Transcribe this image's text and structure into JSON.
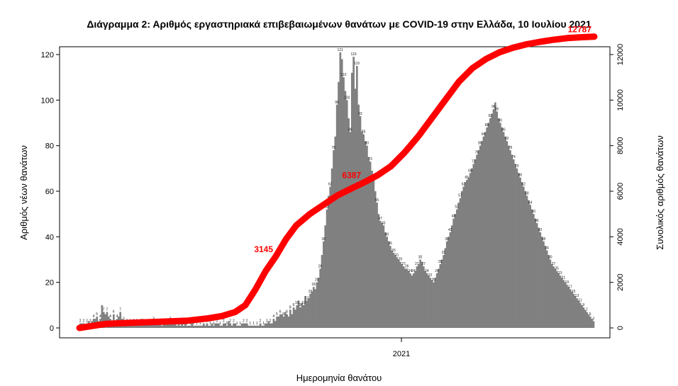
{
  "chart_data": {
    "type": "bar",
    "title": "Διάγραμμα 2: Αριθμός εργαστηριακά επιβεβαιωμένων θανάτων με COVID-19 στην Ελλάδα, 10 Ιουλίου 2021",
    "xlabel": "Ημερομηνία θανάτου",
    "ylabel_left": "Αριθμός νέων θανάτων",
    "ylabel_right": "Συνολικός αριθμός θανάτων",
    "x_ticks": [
      "2021"
    ],
    "y_left_ticks": [
      "0",
      "20",
      "40",
      "60",
      "80",
      "100",
      "120"
    ],
    "y_right_ticks": [
      "0",
      "2000",
      "4000",
      "6000",
      "8000",
      "10000",
      "12000"
    ],
    "ylim_left": [
      0,
      120
    ],
    "ylim_right": [
      0,
      12000
    ],
    "bar_color": "#808080",
    "line_color": "#ff0000",
    "series": [
      {
        "name": "daily",
        "type": "bar",
        "values": [
          2,
          2,
          2,
          1,
          2,
          3,
          2,
          3,
          4,
          4,
          5,
          3,
          4,
          10,
          7,
          6,
          7,
          5,
          4,
          3,
          6,
          3,
          4,
          5,
          7,
          4,
          3,
          3,
          2,
          3,
          2,
          2,
          2,
          3,
          2,
          3,
          2,
          4,
          2,
          3,
          2,
          2,
          2,
          3,
          3,
          2,
          2,
          2,
          2,
          1,
          2,
          2,
          2,
          2,
          3,
          2,
          2,
          2,
          1,
          2,
          1,
          2,
          1,
          2,
          1,
          1,
          1,
          2,
          1,
          1,
          1,
          1,
          1,
          1,
          2,
          1,
          2,
          1,
          1,
          2,
          1,
          2,
          2,
          2,
          1,
          1,
          2,
          2,
          1,
          3,
          2,
          1,
          2,
          2,
          1,
          1,
          1,
          2,
          2,
          2,
          2,
          1,
          1,
          1,
          1,
          1,
          1,
          1,
          2,
          1,
          1,
          2,
          2,
          3,
          2,
          2,
          4,
          3,
          5,
          5,
          6,
          6,
          5,
          7,
          6,
          5,
          8,
          6,
          9,
          8,
          10,
          12,
          9,
          11,
          10,
          14,
          12,
          13,
          15,
          16,
          18,
          17,
          20,
          22,
          26,
          32,
          38,
          45,
          52,
          58,
          62,
          70,
          78,
          84,
          98,
          108,
          121,
          118,
          110,
          104,
          100,
          92,
          86,
          112,
          119,
          105,
          115,
          98,
          93,
          86,
          85,
          82,
          80,
          75,
          73,
          69,
          65,
          60,
          55,
          50,
          47,
          46,
          45,
          42,
          40,
          38,
          36,
          34,
          33,
          32,
          31,
          30,
          29,
          28,
          27,
          26,
          26,
          25,
          24,
          23,
          24,
          25,
          27,
          28,
          30,
          29,
          27,
          25,
          24,
          23,
          22,
          21,
          20,
          22,
          24,
          26,
          28,
          30,
          32,
          35,
          38,
          40,
          42,
          45,
          48,
          50,
          52,
          55,
          57,
          60,
          62,
          64,
          65,
          66,
          68,
          70,
          72,
          74,
          76,
          78,
          80,
          82,
          84,
          86,
          88,
          90,
          92,
          94,
          96,
          99,
          95,
          92,
          90,
          88,
          86,
          84,
          82,
          80,
          78,
          76,
          74,
          72,
          70,
          68,
          66,
          64,
          62,
          60,
          58,
          56,
          54,
          52,
          50,
          48,
          46,
          44,
          42,
          40,
          38,
          36,
          34,
          32,
          30,
          28,
          27,
          26,
          25,
          24,
          23,
          22,
          21,
          20,
          19,
          18,
          17,
          16,
          15,
          14,
          13,
          12,
          11,
          10,
          9,
          8,
          7,
          6,
          5,
          4,
          3
        ]
      },
      {
        "name": "cumulative",
        "type": "line",
        "x": [
          0,
          40,
          80,
          120,
          160,
          190,
          210,
          230,
          245,
          260,
          275,
          290,
          305,
          320,
          340,
          360,
          380,
          400,
          420,
          440,
          460,
          480,
          500,
          520,
          540,
          560,
          580,
          600,
          620,
          640,
          660,
          680,
          700,
          720,
          740,
          760
        ],
        "values": [
          0,
          180,
          230,
          270,
          320,
          420,
          520,
          700,
          1000,
          1700,
          2500,
          3145,
          3900,
          4500,
          5000,
          5400,
          5800,
          6100,
          6387,
          6700,
          7100,
          7700,
          8400,
          9200,
          10000,
          10800,
          11400,
          11800,
          12100,
          12300,
          12450,
          12560,
          12650,
          12720,
          12760,
          12787
        ]
      }
    ],
    "annotations": [
      {
        "text": "3145",
        "x_index": 290
      },
      {
        "text": "6387",
        "x_index": 420
      },
      {
        "text": "12787",
        "x_index": 760
      }
    ]
  }
}
